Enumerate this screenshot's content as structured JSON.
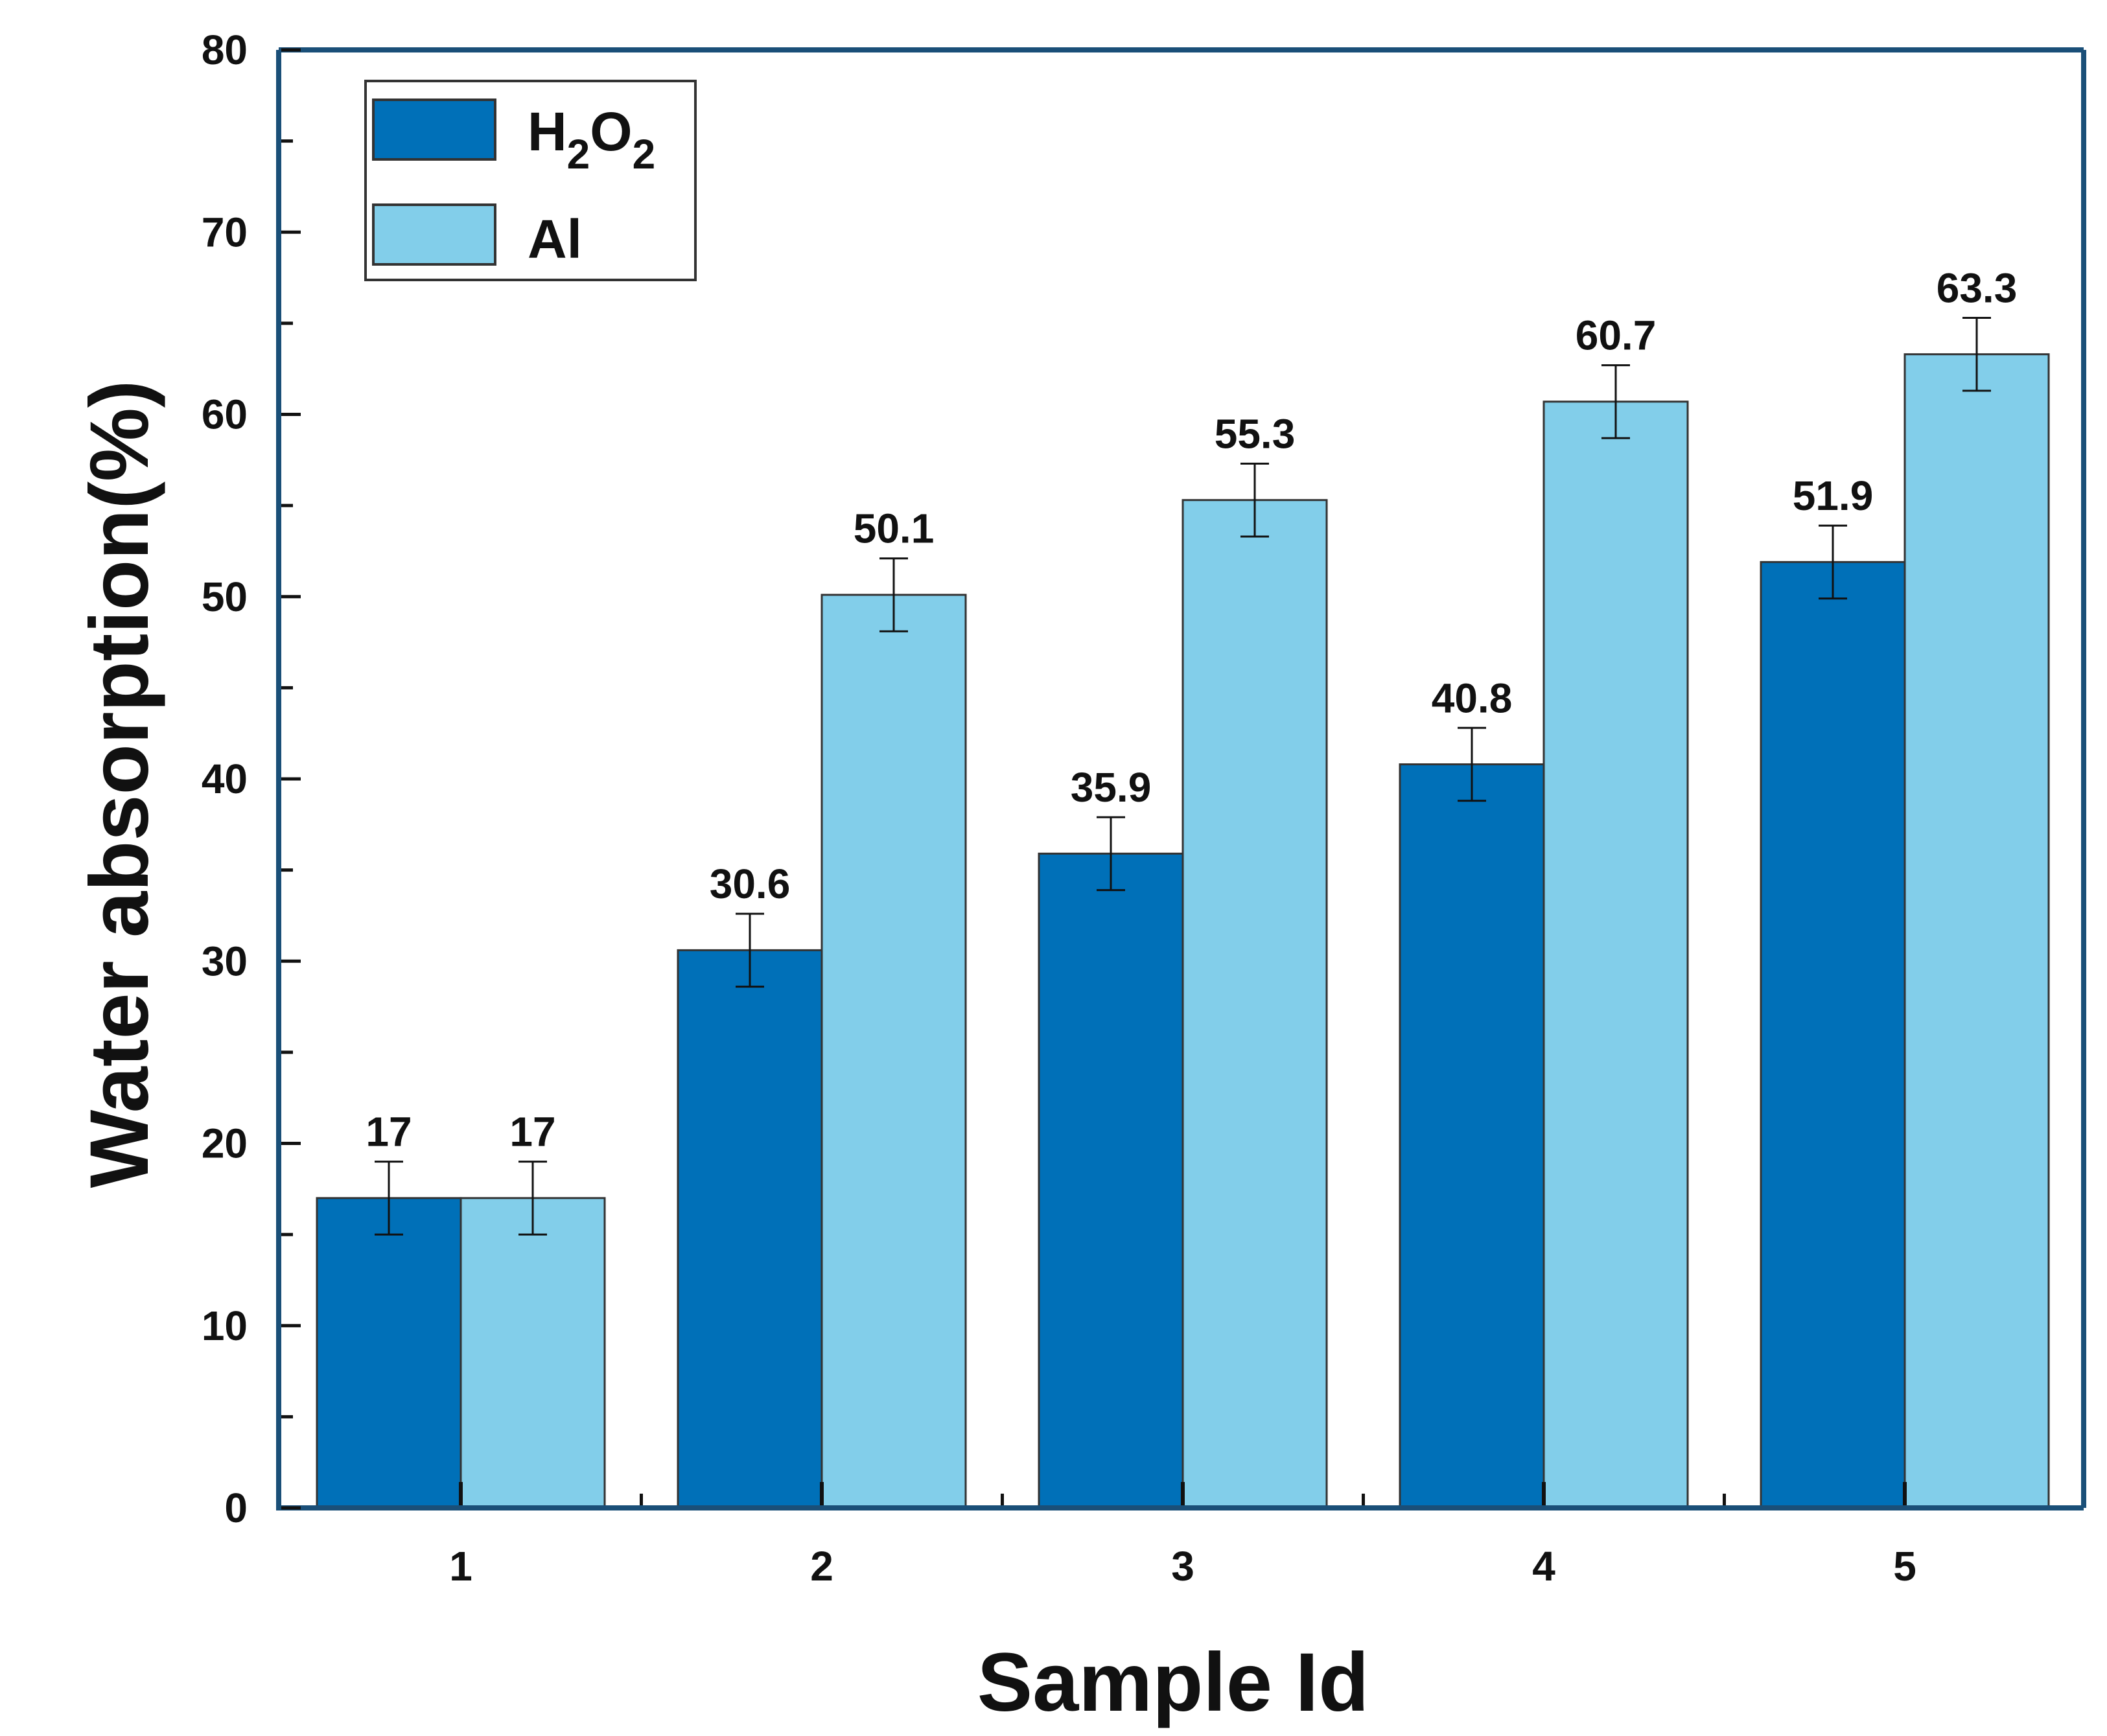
{
  "chart_data": {
    "type": "bar",
    "title": "",
    "xlabel": "Sample Id",
    "ylabel": "Water absorption(%)",
    "categories": [
      "1",
      "2",
      "3",
      "4",
      "5"
    ],
    "ylim": [
      0,
      80
    ],
    "yticks": [
      0,
      10,
      20,
      30,
      40,
      50,
      60,
      70,
      80
    ],
    "grid": false,
    "legend_position": "top-left",
    "error_bar": 2,
    "series": [
      {
        "name": "H2O2",
        "legend_main": "H",
        "legend_sub1": "2",
        "legend_mid": "O",
        "legend_sub2": "2",
        "color": "#0070b8",
        "values": [
          17,
          30.6,
          35.9,
          40.8,
          51.9
        ],
        "labels": [
          "17",
          "30.6",
          "35.9",
          "40.8",
          "51.9"
        ]
      },
      {
        "name": "Al",
        "legend_main": "Al",
        "color": "#82ceea",
        "values": [
          17,
          50.1,
          55.3,
          60.7,
          63.3
        ],
        "labels": [
          "17",
          "50.1",
          "55.3",
          "60.7",
          "63.3"
        ]
      }
    ],
    "axis_color": "#1a4f78"
  }
}
